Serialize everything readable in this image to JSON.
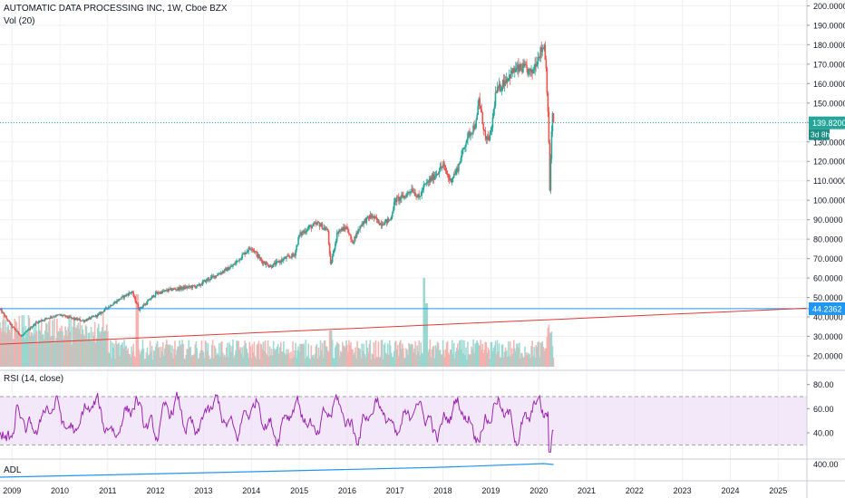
{
  "chart_data": [
    {
      "type": "candlestick",
      "title": "AUTOMATIC DATA PROCESSING INC, 1W, Cboe BZX",
      "y_ticks": [
        20,
        30,
        40,
        50,
        60,
        70,
        80,
        90,
        100,
        110,
        120,
        130,
        140,
        150,
        160,
        170,
        180,
        190,
        200
      ],
      "y_tick_labels": [
        "20.0000",
        "30.0000",
        "40.0000",
        "50.0000",
        "60.0000",
        "70.0000",
        "80.0000",
        "90.0000",
        "100.0000",
        "110.0000",
        "120.0000",
        "130.0000",
        "140.0000",
        "150.0000",
        "160.0000",
        "170.0000",
        "180.0000",
        "190.0000",
        "200.0000"
      ],
      "ylim": [
        13,
        203
      ],
      "x_ticks": [
        2009,
        2010,
        2011,
        2012,
        2013,
        2014,
        2015,
        2016,
        2017,
        2018,
        2019,
        2020,
        2021,
        2022,
        2023,
        2024,
        2025
      ],
      "x_tick_labels": [
        "2009",
        "2010",
        "2011",
        "2012",
        "2013",
        "2014",
        "2015",
        "2016",
        "2017",
        "2018",
        "2019",
        "2020",
        "2021",
        "2022",
        "2023",
        "2024",
        "2025"
      ],
      "xlim": [
        2008.75,
        2025.6
      ],
      "price_path": [
        [
          2008.75,
          44
        ],
        [
          2009.0,
          35
        ],
        [
          2009.2,
          30
        ],
        [
          2009.5,
          37
        ],
        [
          2009.8,
          40
        ],
        [
          2010.0,
          41
        ],
        [
          2010.3,
          39
        ],
        [
          2010.5,
          38
        ],
        [
          2010.8,
          41
        ],
        [
          2011.0,
          45
        ],
        [
          2011.3,
          50
        ],
        [
          2011.5,
          53
        ],
        [
          2011.65,
          44
        ],
        [
          2011.8,
          47
        ],
        [
          2012.0,
          52
        ],
        [
          2012.3,
          54
        ],
        [
          2012.6,
          55
        ],
        [
          2012.9,
          56
        ],
        [
          2013.0,
          58
        ],
        [
          2013.3,
          62
        ],
        [
          2013.6,
          66
        ],
        [
          2013.9,
          74
        ],
        [
          2014.0,
          76
        ],
        [
          2014.2,
          69
        ],
        [
          2014.4,
          66
        ],
        [
          2014.7,
          70
        ],
        [
          2014.9,
          72
        ],
        [
          2015.0,
          82
        ],
        [
          2015.2,
          86
        ],
        [
          2015.4,
          88
        ],
        [
          2015.6,
          84
        ],
        [
          2015.65,
          66
        ],
        [
          2015.8,
          84
        ],
        [
          2016.0,
          86
        ],
        [
          2016.1,
          78
        ],
        [
          2016.3,
          88
        ],
        [
          2016.5,
          92
        ],
        [
          2016.7,
          88
        ],
        [
          2016.9,
          90
        ],
        [
          2017.0,
          100
        ],
        [
          2017.2,
          102
        ],
        [
          2017.35,
          106
        ],
        [
          2017.5,
          101
        ],
        [
          2017.6,
          107
        ],
        [
          2017.8,
          112
        ],
        [
          2018.0,
          118
        ],
        [
          2018.15,
          110
        ],
        [
          2018.3,
          116
        ],
        [
          2018.5,
          132
        ],
        [
          2018.7,
          140
        ],
        [
          2018.75,
          152
        ],
        [
          2018.9,
          130
        ],
        [
          2019.0,
          134
        ],
        [
          2019.1,
          155
        ],
        [
          2019.3,
          162
        ],
        [
          2019.5,
          167
        ],
        [
          2019.7,
          168
        ],
        [
          2019.85,
          165
        ],
        [
          2020.0,
          175
        ],
        [
          2020.12,
          180
        ],
        [
          2020.16,
          165
        ],
        [
          2020.2,
          142
        ],
        [
          2020.23,
          105
        ],
        [
          2020.26,
          130
        ],
        [
          2020.29,
          145
        ],
        [
          2020.31,
          139.82
        ]
      ],
      "last_price": 139.82,
      "last_price_label": "139.8200",
      "countdown_label": "3d 8h",
      "level_line": {
        "value": 44.2362,
        "label": "44.2362"
      },
      "trend_line": {
        "from": [
          2008.75,
          26
        ],
        "to": [
          2025.6,
          44.5
        ]
      },
      "colors": {
        "up": "#26a69a",
        "down": "#ef5350",
        "price_line": "#26a69a",
        "level_line": "#2196f3",
        "trend_line": "#e53935"
      }
    },
    {
      "type": "bar",
      "title": "Vol (20)",
      "note": "volume histogram drawn as pale green/red bars in lower part of price pane; spikes near 2011.6, 2017.6 and 2020.2"
    },
    {
      "type": "line",
      "title": "RSI (14, close)",
      "y_ticks": [
        40,
        60,
        80
      ],
      "y_tick_labels": [
        "40.00",
        "60.00",
        "80.00"
      ],
      "ylim": [
        19,
        91
      ],
      "band": [
        30,
        70
      ],
      "last_value": 42,
      "color": "#9c27b0",
      "band_color": "#e9d6f5"
    },
    {
      "type": "line",
      "title": "ADL",
      "y_ticks": [
        400
      ],
      "y_tick_labels": [
        "400.00"
      ],
      "color": "#2196f3"
    }
  ],
  "legends": {
    "title": "AUTOMATIC DATA PROCESSING INC, 1W, Cboe BZX",
    "vol": "Vol (20)",
    "rsi": "RSI (14, close)",
    "adl": "ADL"
  }
}
